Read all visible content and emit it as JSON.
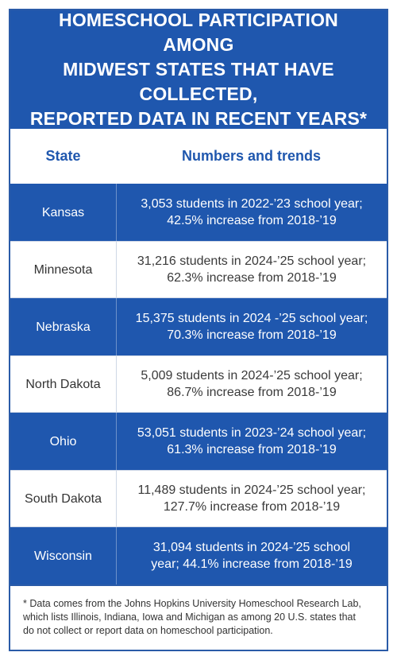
{
  "title": {
    "line1": "HOMESCHOOL PARTICIPATION AMONG",
    "line2": "MIDWEST STATES THAT HAVE COLLECTED,",
    "line3": "REPORTED DATA IN RECENT YEARS*"
  },
  "table": {
    "headers": {
      "state": "State",
      "trends": "Numbers and trends"
    },
    "rows": [
      {
        "state": "Kansas",
        "line1": "3,053 students in 2022-’23 school year;",
        "line2": "42.5% increase from 2018-’19"
      },
      {
        "state": "Minnesota",
        "line1": "31,216 students in 2024-’25 school year;",
        "line2": "62.3% increase from 2018-’19"
      },
      {
        "state": "Nebraska",
        "line1": "15,375 students in 2024 -’25 school year;",
        "line2": "70.3% increase from 2018-’19"
      },
      {
        "state": "North Dakota",
        "line1": "5,009 students in 2024-’25 school year;",
        "line2": "86.7% increase from 2018-’19"
      },
      {
        "state": "Ohio",
        "line1": "53,051 students in 2023-’24 school year;",
        "line2": "61.3% increase from 2018-’19"
      },
      {
        "state": "South Dakota",
        "line1": "11,489 students in 2024-’25 school year;",
        "line2": "127.7% increase from 2018-’19"
      },
      {
        "state": "Wisconsin",
        "line1": "31,094 students in 2024-’25 school",
        "line2": "year; 44.1% increase from 2018-’19"
      }
    ]
  },
  "footnote": {
    "line1": "* Data comes from the Johns Hopkins University Homeschool Research Lab,",
    "line2": "which lists Illinois, Indiana, Iowa and Michigan as among 20 U.S. states that",
    "line3": "do not collect or report data on homeschool participation."
  },
  "colors": {
    "primary_blue": "#1f57ae",
    "white": "#ffffff",
    "text_dark": "#333333"
  }
}
